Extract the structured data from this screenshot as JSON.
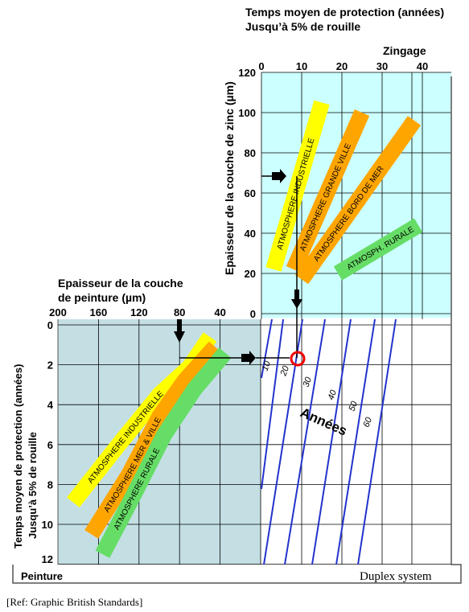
{
  "chart_data": [
    {
      "type": "line",
      "panel": "Zingage",
      "title": "Zingage",
      "axis_top_title_line1": "Temps moyen de protection (années)",
      "axis_top_title_line2": "Jusqu’à 5% de rouille",
      "ylabel": "Epaisseur de la couche de zinc (µm)",
      "x_ticks": [
        "0",
        "10",
        "20",
        "30",
        "40"
      ],
      "y_ticks": [
        "0",
        "20",
        "40",
        "60",
        "80",
        "100",
        "120"
      ],
      "xlim": [
        0,
        45
      ],
      "ylim": [
        0,
        120
      ],
      "grid": true,
      "series": [
        {
          "name": "ATMOSPHERE INDUSTRIELLE",
          "color": "#ffff00",
          "x": [
            3,
            15
          ],
          "y": [
            22,
            105
          ]
        },
        {
          "name": "ATMOSPHERE GRANDE VILLE",
          "color": "#ffa500",
          "x": [
            8,
            25
          ],
          "y": [
            22,
            100
          ]
        },
        {
          "name": "ATMOSPHERE BORD DE MER",
          "color": "#ffa500",
          "x": [
            10,
            38
          ],
          "y": [
            17,
            96
          ]
        },
        {
          "name": "ATMOSPH. RURALE",
          "color": "#66dd66",
          "x": [
            19,
            39
          ],
          "y": [
            20,
            44
          ]
        }
      ]
    },
    {
      "type": "line",
      "panel": "Peinture",
      "title": "Peinture",
      "axis_top_title_line1": "Epaisseur de la couche",
      "axis_top_title_line2": "de peinture (µm)",
      "ylabel_line1": "Temps moyen de protection (années)",
      "ylabel_line2": "Jusqu’à 5% de rouille",
      "x_ticks": [
        "200",
        "160",
        "120",
        "80",
        "40"
      ],
      "y_ticks": [
        "0",
        "2",
        "4",
        "6",
        "8",
        "10",
        "12"
      ],
      "xlim": [
        200,
        0
      ],
      "ylim": [
        0,
        12
      ],
      "grid": true,
      "series": [
        {
          "name": "ATMOSPHERE INDUSTRIELLE",
          "color": "#ffff00",
          "x": [
            185,
            140,
            100,
            70,
            50
          ],
          "y": [
            8.9,
            6.0,
            3.5,
            2.1,
            0.6
          ]
        },
        {
          "name": "ATMOSPHERE MER & VILLE",
          "color": "#ffa500",
          "x": [
            167,
            130,
            100,
            75,
            45
          ],
          "y": [
            10.5,
            7.5,
            4.6,
            2.8,
            1.1
          ]
        },
        {
          "name": "ATMOSPHERE RURALE",
          "color": "#66dd66",
          "x": [
            156,
            125,
            95,
            65,
            35
          ],
          "y": [
            11.5,
            8.5,
            5.5,
            3.2,
            1.4
          ]
        }
      ]
    }
  ],
  "duplex": {
    "label": "Années",
    "year_lines": [
      "10",
      "20",
      "30",
      "40",
      "50",
      "60"
    ],
    "operating_point": {
      "zinc_um": 70,
      "paint_um": 80,
      "zinc_years": 10,
      "paint_years": 2,
      "total_years": 24
    }
  },
  "texts": {
    "footer_left": "Peinture",
    "footer_right": "Duplex system",
    "reference": "[Ref: Graphic British Standards]"
  },
  "colors": {
    "zinc_bg": "#ccffff",
    "paint_bg": "#c4dfe4",
    "grid": "#000000",
    "year_line": "#2233cc",
    "marker": "#ee0000"
  }
}
